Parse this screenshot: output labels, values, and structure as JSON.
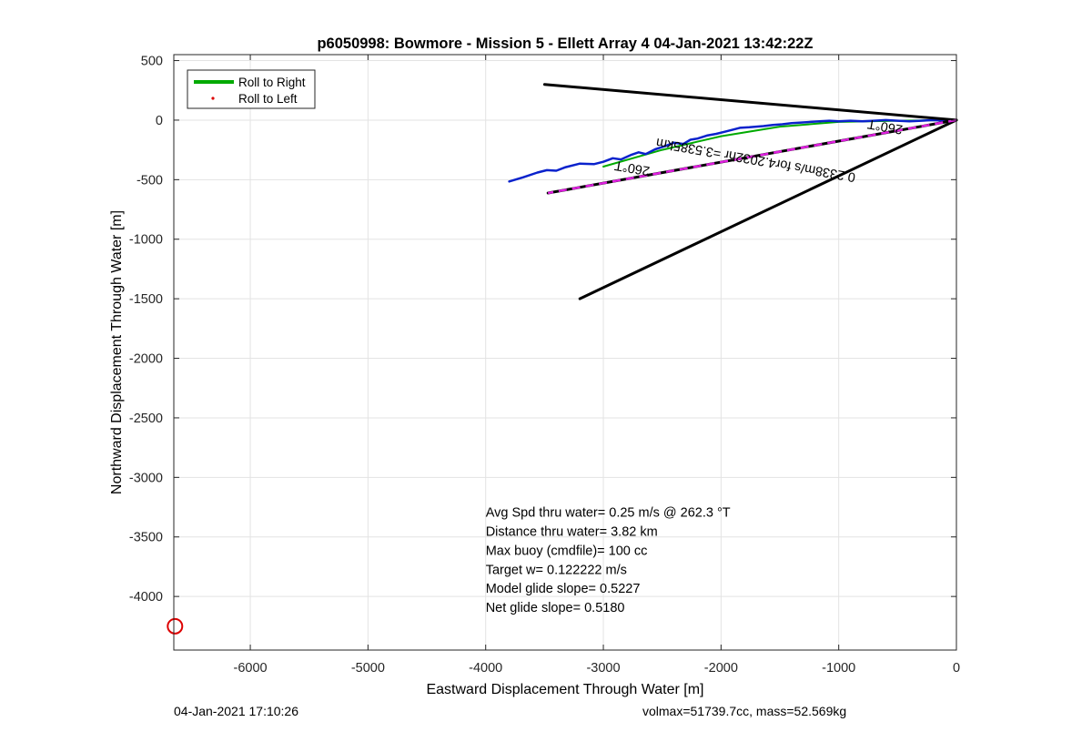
{
  "chart_data": {
    "type": "line",
    "title": "p6050998: Bowmore - Mission 5 - Ellett Array 4 04-Jan-2021 13:42:22Z",
    "xlabel": "Eastward Displacement Through Water [m]",
    "ylabel": "Northward Displacement Through Water [m]",
    "xlim": [
      -6650,
      0
    ],
    "ylim": [
      -4450,
      550
    ],
    "xticks": [
      -6000,
      -5000,
      -4000,
      -3000,
      -2000,
      -1000,
      0
    ],
    "yticks": [
      500,
      0,
      -500,
      -1000,
      -1500,
      -2000,
      -2500,
      -3000,
      -3500,
      -4000
    ],
    "grid": true,
    "legend": {
      "position": "top-left",
      "entries": [
        {
          "label": "Roll to Right",
          "color": "#00aa00",
          "style": "line"
        },
        {
          "label": "Roll to Left",
          "color": "#dd0000",
          "style": "dot"
        }
      ]
    },
    "series": [
      {
        "name": "Roll to Right",
        "color": "#00aa00",
        "x": [
          -3000,
          -2500,
          -2000,
          -1500,
          -1000,
          -500,
          0
        ],
        "y": [
          -390,
          -250,
          -135,
          -55,
          -15,
          -5,
          0
        ]
      },
      {
        "color": "#0a22cc",
        "x": [
          -3800,
          -3680,
          -3560,
          -3480,
          -3400,
          -3320,
          -3200,
          -3080,
          -3000,
          -2920,
          -2850,
          -2760,
          -2700,
          -2640,
          -2560,
          -2480,
          -2400,
          -2320,
          -2260,
          -2200,
          -2120,
          -2040,
          -1960,
          -1900,
          -1840,
          -1760,
          -1700,
          -1640,
          -1560,
          -1480,
          -1400,
          -1320,
          -1240,
          -1160,
          -1080,
          -1000,
          -900,
          -800,
          -700,
          -600,
          -500,
          -400,
          -300,
          -200,
          -100,
          0
        ],
        "y": [
          -515,
          -480,
          -440,
          -420,
          -425,
          -395,
          -365,
          -370,
          -350,
          -320,
          -330,
          -290,
          -270,
          -285,
          -245,
          -220,
          -190,
          -200,
          -165,
          -155,
          -130,
          -115,
          -95,
          -80,
          -65,
          -60,
          -55,
          -50,
          -40,
          -35,
          -25,
          -20,
          -15,
          -10,
          -5,
          -10,
          -5,
          -10,
          -5,
          0,
          -5,
          -10,
          -5,
          0,
          -5,
          0
        ]
      },
      {
        "color": "#000000",
        "x": [
          0,
          -3500
        ],
        "y": [
          0,
          300
        ]
      },
      {
        "color": "#000000",
        "x": [
          0,
          -3200
        ],
        "y": [
          0,
          -1500
        ]
      },
      {
        "color": "#000000",
        "x": [
          0,
          -3470
        ],
        "y": [
          0,
          -612
        ]
      },
      {
        "color": "#e020e0",
        "dashed": true,
        "x": [
          0,
          -3470
        ],
        "y": [
          0,
          -612
        ]
      },
      {
        "color": "#dd0000",
        "marker": "circle",
        "x": [
          -6640
        ],
        "y": [
          -4250
        ]
      }
    ],
    "annotations": [
      {
        "text": "260°T",
        "x": -2750,
        "y": -370,
        "rotation": 190
      },
      {
        "text": "260°T",
        "x": -600,
        "y": -20,
        "rotation": 190
      },
      {
        "text": "0.2338m/s for4.2032hr =3.5385km",
        "x": -1700,
        "y": -300,
        "rotation": 190
      },
      {
        "text": "Avg Spd thru water=  0.25 m/s @ 262.3 °T",
        "x": -4000,
        "y": -3330
      },
      {
        "text": "Distance thru water=  3.82 km",
        "x": -4000,
        "y": -3490
      },
      {
        "text": "Max buoy (cmdfile)= 100 cc",
        "x": -4000,
        "y": -3650
      },
      {
        "text": "Target w= 0.122222 m/s",
        "x": -4000,
        "y": -3810
      },
      {
        "text": "Model glide slope= 0.5227",
        "x": -4000,
        "y": -3970
      },
      {
        "text": "Net glide slope= 0.5180",
        "x": -4000,
        "y": -4130
      }
    ]
  },
  "footer": {
    "timestamp": "04-Jan-2021 17:10:26",
    "params": "volmax=51739.7cc, mass=52.569kg"
  }
}
